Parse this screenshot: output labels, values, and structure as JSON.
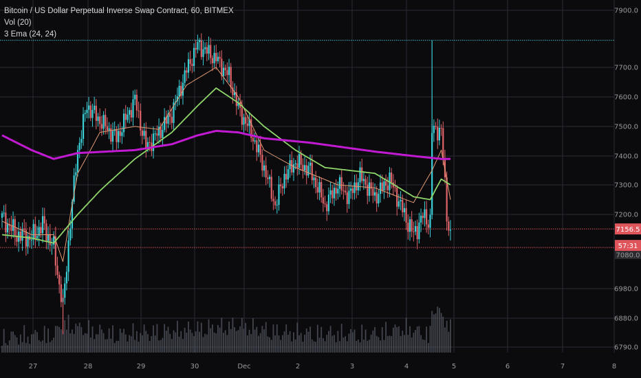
{
  "legend": {
    "title": "Bitcoin / US Dollar Perpetual Inverse Swap Contract, 60, BITMEX",
    "volume": "Vol (20)",
    "ema": "3 Ema (24, 24)"
  },
  "price_tags": {
    "last_price": "7156.5",
    "countdown": "57:31",
    "obscured_level": "7080.0"
  },
  "colors": {
    "background": "#0b0b0e",
    "grid": "#2a2d35",
    "up_candle": "#3ad1d8",
    "down_candle": "#e0646a",
    "ema_fast": "#e29a72",
    "ema_mid": "#8fd66b",
    "ema_slow": "#c21ad3",
    "volume": "#555a63",
    "resistance_line": "#3ab6c0",
    "support_line": "#d9535b",
    "price_tag": "#e0555c"
  },
  "chart_data": {
    "type": "candlestick",
    "symbol": "XBTUSD",
    "exchange": "BITMEX",
    "timeframe_minutes": 60,
    "x_tick_labels": [
      "27",
      "28",
      "29",
      "30",
      "Dec",
      "2",
      "3",
      "4",
      "5",
      "6",
      "7",
      "8"
    ],
    "y_tick_labels": [
      "7900.0",
      "7700.0",
      "7600.0",
      "7500.0",
      "7400.0",
      "7300.0",
      "7200.0",
      "6980.0",
      "6880.0",
      "6790.0"
    ],
    "price_axis_ticks": [
      7900,
      7700,
      7600,
      7500,
      7400,
      7300,
      7200,
      6980,
      6880,
      6790
    ],
    "y_range": [
      6780,
      7920
    ],
    "horizontal_levels": {
      "resistance": 7795,
      "support_high": 7157,
      "support_low": 7102
    },
    "close_anchors": [
      [
        0,
        7190
      ],
      [
        8,
        7140
      ],
      [
        16,
        7130
      ],
      [
        22,
        7170
      ],
      [
        28,
        7100
      ],
      [
        33,
        6920
      ],
      [
        37,
        7180
      ],
      [
        41,
        7420
      ],
      [
        46,
        7570
      ],
      [
        53,
        7520
      ],
      [
        62,
        7460
      ],
      [
        72,
        7590
      ],
      [
        78,
        7430
      ],
      [
        85,
        7480
      ],
      [
        92,
        7545
      ],
      [
        100,
        7690
      ],
      [
        106,
        7780
      ],
      [
        116,
        7730
      ],
      [
        123,
        7670
      ],
      [
        128,
        7560
      ],
      [
        135,
        7480
      ],
      [
        142,
        7360
      ],
      [
        148,
        7230
      ],
      [
        153,
        7330
      ],
      [
        159,
        7380
      ],
      [
        167,
        7350
      ],
      [
        175,
        7230
      ],
      [
        182,
        7300
      ],
      [
        188,
        7260
      ],
      [
        194,
        7330
      ],
      [
        202,
        7260
      ],
      [
        210,
        7320
      ],
      [
        218,
        7200
      ],
      [
        223,
        7140
      ],
      [
        228,
        7195
      ],
      [
        232,
        7180
      ],
      [
        233,
        7485
      ],
      [
        238,
        7490
      ],
      [
        241,
        7200
      ],
      [
        243,
        7140
      ]
    ],
    "ema_fast_anchors": [
      [
        0,
        7180
      ],
      [
        16,
        7140
      ],
      [
        28,
        7140
      ],
      [
        33,
        7060
      ],
      [
        41,
        7340
      ],
      [
        53,
        7480
      ],
      [
        72,
        7500
      ],
      [
        85,
        7490
      ],
      [
        100,
        7640
      ],
      [
        116,
        7700
      ],
      [
        128,
        7600
      ],
      [
        142,
        7420
      ],
      [
        159,
        7360
      ],
      [
        182,
        7300
      ],
      [
        202,
        7290
      ],
      [
        223,
        7240
      ],
      [
        233,
        7350
      ],
      [
        238,
        7420
      ],
      [
        243,
        7250
      ]
    ],
    "ema_mid_anchors": [
      [
        0,
        7140
      ],
      [
        16,
        7130
      ],
      [
        28,
        7115
      ],
      [
        41,
        7200
      ],
      [
        53,
        7280
      ],
      [
        72,
        7390
      ],
      [
        92,
        7480
      ],
      [
        106,
        7570
      ],
      [
        116,
        7630
      ],
      [
        128,
        7580
      ],
      [
        142,
        7500
      ],
      [
        159,
        7420
      ],
      [
        175,
        7360
      ],
      [
        202,
        7340
      ],
      [
        223,
        7260
      ],
      [
        232,
        7250
      ],
      [
        238,
        7320
      ],
      [
        243,
        7300
      ]
    ],
    "ema_slow_anchors": [
      [
        0,
        7470
      ],
      [
        16,
        7420
      ],
      [
        28,
        7390
      ],
      [
        41,
        7410
      ],
      [
        72,
        7420
      ],
      [
        92,
        7440
      ],
      [
        106,
        7470
      ],
      [
        116,
        7485
      ],
      [
        128,
        7480
      ],
      [
        142,
        7460
      ],
      [
        167,
        7445
      ],
      [
        202,
        7415
      ],
      [
        223,
        7400
      ],
      [
        238,
        7390
      ],
      [
        243,
        7390
      ]
    ],
    "volume_anchors": [
      [
        0,
        0.15
      ],
      [
        28,
        0.2
      ],
      [
        33,
        0.45
      ],
      [
        41,
        0.35
      ],
      [
        60,
        0.2
      ],
      [
        100,
        0.3
      ],
      [
        128,
        0.4
      ],
      [
        150,
        0.25
      ],
      [
        200,
        0.2
      ],
      [
        218,
        0.35
      ],
      [
        232,
        0.2
      ],
      [
        233,
        0.85
      ],
      [
        241,
        0.5
      ],
      [
        243,
        0.3
      ]
    ]
  }
}
